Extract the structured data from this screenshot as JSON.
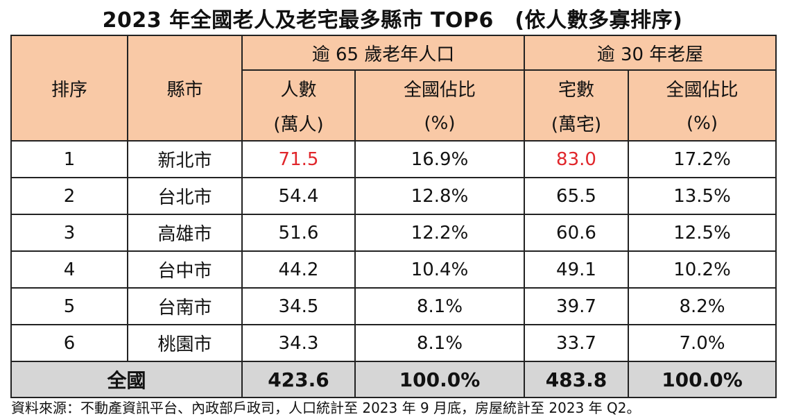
{
  "title": "2023 年全國老人及老宅最多縣市 TOP6　(依人數多寡排序)",
  "headers": {
    "rank": "排序",
    "city": "縣市",
    "elderly_group": "逾 65 歲老年人口",
    "house_group": "逾 30 年老屋",
    "elderly_count": "人數",
    "elderly_count_unit": "(萬人)",
    "elderly_share": "全國佔比",
    "elderly_share_unit": "(%)",
    "house_count": "宅數",
    "house_count_unit": "(萬宅)",
    "house_share": "全國佔比",
    "house_share_unit": "(%)"
  },
  "rows": [
    {
      "rank": "1",
      "city": "新北市",
      "elderly_count": "71.5",
      "elderly_share": "16.9%",
      "house_count": "83.0",
      "house_share": "17.2%"
    },
    {
      "rank": "2",
      "city": "台北市",
      "elderly_count": "54.4",
      "elderly_share": "12.8%",
      "house_count": "65.5",
      "house_share": "13.5%"
    },
    {
      "rank": "3",
      "city": "高雄市",
      "elderly_count": "51.6",
      "elderly_share": "12.2%",
      "house_count": "60.6",
      "house_share": "12.5%"
    },
    {
      "rank": "4",
      "city": "台中市",
      "elderly_count": "44.2",
      "elderly_share": "10.4%",
      "house_count": "49.1",
      "house_share": "10.2%"
    },
    {
      "rank": "5",
      "city": "台南市",
      "elderly_count": "34.5",
      "elderly_share": "8.1%",
      "house_count": "39.7",
      "house_share": "8.2%"
    },
    {
      "rank": "6",
      "city": "桃園市",
      "elderly_count": "34.3",
      "elderly_share": "8.1%",
      "house_count": "33.7",
      "house_share": "7.0%"
    }
  ],
  "total": {
    "label": "全國",
    "elderly_count": "423.6",
    "elderly_share": "100.0%",
    "house_count": "483.8",
    "house_share": "100.0%"
  },
  "colors": {
    "header_bg": "#f9c9a6",
    "highlight": "#e0262b",
    "total_bg": "#d6d6d6"
  },
  "footer": "資料來源：不動產資訊平台、內政部戶政司，人口統計至 2023 年 9 月底，房屋統計至 2023 年 Q2。"
}
